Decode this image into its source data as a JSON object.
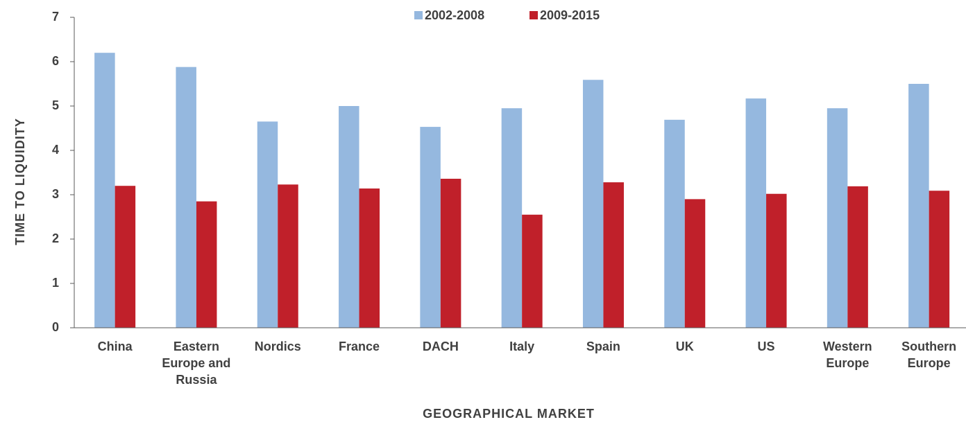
{
  "chart_data": {
    "type": "bar",
    "categories": [
      "China",
      "Eastern Europe and Russia",
      "Nordics",
      "France",
      "DACH",
      "Italy",
      "Spain",
      "UK",
      "US",
      "Western Europe",
      "Southern Europe"
    ],
    "series": [
      {
        "name": "2002-2008",
        "color": "#95b8df",
        "values": [
          6.2,
          5.88,
          4.65,
          5.0,
          4.53,
          4.95,
          5.59,
          4.69,
          5.17,
          4.95,
          5.5
        ]
      },
      {
        "name": "2009-2015",
        "color": "#c0202a",
        "values": [
          3.2,
          2.85,
          3.23,
          3.14,
          3.36,
          2.55,
          3.28,
          2.9,
          3.02,
          3.19,
          3.09
        ]
      }
    ],
    "ylim": [
      0,
      7
    ],
    "yticks": [
      0,
      1,
      2,
      3,
      4,
      5,
      6,
      7
    ],
    "grid": false,
    "xlabel": "GEOGRAPHICAL MARKET",
    "ylabel": "TIME TO LIQUIDITY",
    "legend": "top"
  }
}
